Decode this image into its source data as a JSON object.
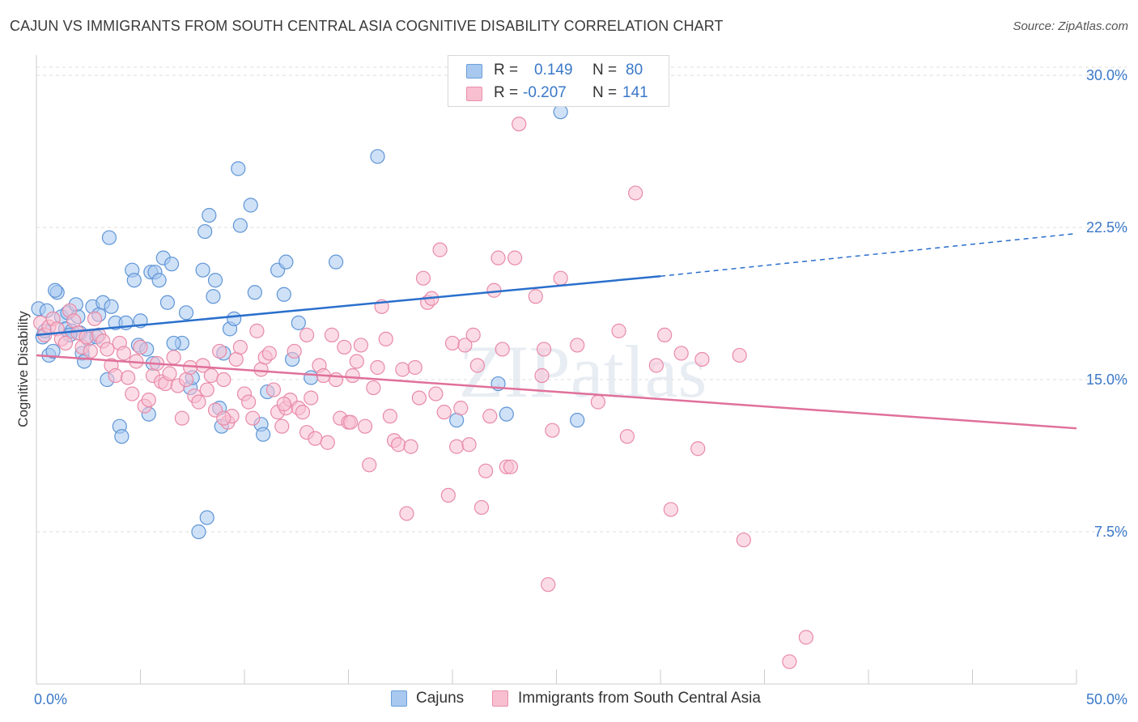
{
  "title": "CAJUN VS IMMIGRANTS FROM SOUTH CENTRAL ASIA COGNITIVE DISABILITY CORRELATION CHART",
  "source": "Source: ZipAtlas.com",
  "watermark": "ZIPatlas",
  "legend": {
    "r_label": "R =",
    "n_label": "N =",
    "rows": [
      {
        "r": "0.149",
        "n": "80",
        "color": "#a8c8f0",
        "border": "#6a9fd8"
      },
      {
        "r": "-0.207",
        "n": "141",
        "color": "#f8bfd0",
        "border": "#e890aa"
      }
    ]
  },
  "bottom_legend": [
    "Cajuns",
    "Immigrants from South Central Asia"
  ],
  "colors": {
    "blue_fill": "#a8c8f0",
    "blue_stroke": "#5f95d6",
    "blue_line": "#2a6fcc",
    "pink_fill": "#f8c0d2",
    "pink_stroke": "#e88aa8",
    "pink_line": "#e0709a",
    "axis_label": "#3a78c8",
    "grid": "#dddddd"
  },
  "chart_data": {
    "type": "scatter",
    "title": "CAJUN VS IMMIGRANTS FROM SOUTH CENTRAL ASIA COGNITIVE DISABILITY CORRELATION CHART",
    "xlabel": "",
    "ylabel": "Cognitive Disability",
    "xlim": [
      0,
      50
    ],
    "ylim": [
      0,
      31
    ],
    "x_tick_labels": [
      "0.0%",
      "50.0%"
    ],
    "y_ticks": [
      7.5,
      15.0,
      22.5,
      30.0
    ],
    "y_tick_labels": [
      "7.5%",
      "15.0%",
      "22.5%",
      "30.0%"
    ],
    "grid": true,
    "series": [
      {
        "name": "Cajuns",
        "r": 0.149,
        "n": 80,
        "trend": {
          "x": [
            0,
            30
          ],
          "y": [
            17.2,
            20.1
          ],
          "dashed_to": [
            50,
            22.2
          ]
        },
        "points": [
          [
            0.1,
            18.5
          ],
          [
            0.3,
            17.1
          ],
          [
            0.4,
            17.4
          ],
          [
            0.5,
            18.4
          ],
          [
            0.6,
            16.2
          ],
          [
            0.8,
            16.4
          ],
          [
            1.0,
            19.3
          ],
          [
            1.2,
            18.1
          ],
          [
            1.4,
            17.5
          ],
          [
            1.5,
            18.3
          ],
          [
            1.7,
            17.4
          ],
          [
            1.9,
            18.7
          ],
          [
            2.0,
            18.1
          ],
          [
            2.1,
            17.3
          ],
          [
            2.2,
            16.3
          ],
          [
            2.3,
            15.9
          ],
          [
            2.5,
            17.0
          ],
          [
            2.7,
            18.6
          ],
          [
            2.9,
            17.1
          ],
          [
            3.0,
            18.2
          ],
          [
            3.2,
            18.8
          ],
          [
            3.5,
            22.0
          ],
          [
            3.6,
            18.6
          ],
          [
            3.8,
            17.8
          ],
          [
            4.0,
            12.7
          ],
          [
            4.1,
            12.2
          ],
          [
            4.3,
            17.8
          ],
          [
            4.6,
            20.4
          ],
          [
            4.7,
            19.9
          ],
          [
            4.9,
            16.7
          ],
          [
            5.0,
            17.9
          ],
          [
            5.3,
            16.5
          ],
          [
            5.4,
            13.3
          ],
          [
            5.5,
            20.3
          ],
          [
            5.6,
            15.8
          ],
          [
            5.7,
            20.3
          ],
          [
            5.9,
            19.9
          ],
          [
            6.1,
            21.0
          ],
          [
            6.3,
            18.8
          ],
          [
            6.5,
            20.7
          ],
          [
            7.0,
            16.8
          ],
          [
            7.2,
            18.3
          ],
          [
            7.4,
            14.6
          ],
          [
            7.5,
            15.1
          ],
          [
            7.8,
            7.5
          ],
          [
            8.0,
            20.4
          ],
          [
            8.1,
            22.3
          ],
          [
            8.2,
            8.2
          ],
          [
            8.3,
            23.1
          ],
          [
            8.5,
            19.1
          ],
          [
            8.6,
            19.9
          ],
          [
            8.8,
            13.6
          ],
          [
            8.9,
            12.7
          ],
          [
            9.3,
            17.5
          ],
          [
            9.5,
            18.0
          ],
          [
            9.7,
            25.4
          ],
          [
            9.8,
            22.6
          ],
          [
            10.3,
            23.6
          ],
          [
            10.5,
            19.3
          ],
          [
            10.8,
            12.8
          ],
          [
            10.9,
            12.3
          ],
          [
            11.1,
            14.4
          ],
          [
            11.6,
            20.4
          ],
          [
            11.9,
            19.2
          ],
          [
            12.0,
            20.8
          ],
          [
            12.3,
            16.0
          ],
          [
            12.6,
            17.8
          ],
          [
            13.2,
            15.1
          ],
          [
            14.4,
            20.8
          ],
          [
            16.4,
            26.0
          ],
          [
            22.2,
            14.8
          ],
          [
            22.6,
            13.3
          ],
          [
            25.2,
            28.2
          ],
          [
            26.0,
            13.0
          ],
          [
            20.2,
            13.0
          ],
          [
            3.4,
            15.0
          ],
          [
            6.6,
            16.8
          ],
          [
            9.0,
            16.3
          ],
          [
            1.6,
            17.2
          ],
          [
            0.9,
            19.4
          ]
        ]
      },
      {
        "name": "Immigrants from South Central Asia",
        "r": -0.207,
        "n": 141,
        "trend": {
          "x": [
            0,
            50
          ],
          "y": [
            16.2,
            12.6
          ]
        },
        "points": [
          [
            0.2,
            17.8
          ],
          [
            0.4,
            17.2
          ],
          [
            0.6,
            17.6
          ],
          [
            0.8,
            18.0
          ],
          [
            1.0,
            17.5
          ],
          [
            1.2,
            17.0
          ],
          [
            1.4,
            16.8
          ],
          [
            1.6,
            18.4
          ],
          [
            1.8,
            17.9
          ],
          [
            2.0,
            17.3
          ],
          [
            2.2,
            16.6
          ],
          [
            2.4,
            17.1
          ],
          [
            2.6,
            16.4
          ],
          [
            2.8,
            18.0
          ],
          [
            3.0,
            17.2
          ],
          [
            3.2,
            16.9
          ],
          [
            3.4,
            16.5
          ],
          [
            3.6,
            15.7
          ],
          [
            3.8,
            15.2
          ],
          [
            4.0,
            16.8
          ],
          [
            4.2,
            16.3
          ],
          [
            4.4,
            15.1
          ],
          [
            4.6,
            14.3
          ],
          [
            4.8,
            15.9
          ],
          [
            5.0,
            16.6
          ],
          [
            5.2,
            13.7
          ],
          [
            5.4,
            14.0
          ],
          [
            5.6,
            15.2
          ],
          [
            5.8,
            15.8
          ],
          [
            6.0,
            14.9
          ],
          [
            6.2,
            14.8
          ],
          [
            6.4,
            15.3
          ],
          [
            6.6,
            16.1
          ],
          [
            6.8,
            14.7
          ],
          [
            7.0,
            13.1
          ],
          [
            7.2,
            15.0
          ],
          [
            7.4,
            15.6
          ],
          [
            7.6,
            14.2
          ],
          [
            7.8,
            13.9
          ],
          [
            8.0,
            15.7
          ],
          [
            8.2,
            14.5
          ],
          [
            8.4,
            15.2
          ],
          [
            8.6,
            13.5
          ],
          [
            8.8,
            16.4
          ],
          [
            9.0,
            15.0
          ],
          [
            9.2,
            12.9
          ],
          [
            9.4,
            13.2
          ],
          [
            9.6,
            16.0
          ],
          [
            9.8,
            16.6
          ],
          [
            10.0,
            14.3
          ],
          [
            10.2,
            13.9
          ],
          [
            10.4,
            13.1
          ],
          [
            10.6,
            17.4
          ],
          [
            10.8,
            15.5
          ],
          [
            11.0,
            16.1
          ],
          [
            11.2,
            16.3
          ],
          [
            11.4,
            14.5
          ],
          [
            11.6,
            13.4
          ],
          [
            11.8,
            12.7
          ],
          [
            12.0,
            13.6
          ],
          [
            12.2,
            14.0
          ],
          [
            12.4,
            16.4
          ],
          [
            12.6,
            13.6
          ],
          [
            12.8,
            13.4
          ],
          [
            13.0,
            12.4
          ],
          [
            13.2,
            14.1
          ],
          [
            13.4,
            12.1
          ],
          [
            13.6,
            15.7
          ],
          [
            13.8,
            15.2
          ],
          [
            14.0,
            11.9
          ],
          [
            14.2,
            17.2
          ],
          [
            14.4,
            15.0
          ],
          [
            14.6,
            13.1
          ],
          [
            14.8,
            16.6
          ],
          [
            15.0,
            12.9
          ],
          [
            15.2,
            15.2
          ],
          [
            15.4,
            15.9
          ],
          [
            15.6,
            16.7
          ],
          [
            15.8,
            12.7
          ],
          [
            16.0,
            10.8
          ],
          [
            16.2,
            14.6
          ],
          [
            16.4,
            15.6
          ],
          [
            16.6,
            18.6
          ],
          [
            16.8,
            17.0
          ],
          [
            17.0,
            13.2
          ],
          [
            17.2,
            12.0
          ],
          [
            17.4,
            11.8
          ],
          [
            17.6,
            15.5
          ],
          [
            17.8,
            8.4
          ],
          [
            18.0,
            11.7
          ],
          [
            18.2,
            15.6
          ],
          [
            18.4,
            14.1
          ],
          [
            18.6,
            20.0
          ],
          [
            18.8,
            18.8
          ],
          [
            19.0,
            19.0
          ],
          [
            19.2,
            14.3
          ],
          [
            19.4,
            21.4
          ],
          [
            19.6,
            13.4
          ],
          [
            19.8,
            9.3
          ],
          [
            20.0,
            16.8
          ],
          [
            20.2,
            11.7
          ],
          [
            20.4,
            13.6
          ],
          [
            20.6,
            16.7
          ],
          [
            20.8,
            11.8
          ],
          [
            21.0,
            17.2
          ],
          [
            21.2,
            15.7
          ],
          [
            21.4,
            8.7
          ],
          [
            21.6,
            10.5
          ],
          [
            21.8,
            13.2
          ],
          [
            22.0,
            19.4
          ],
          [
            22.2,
            21.0
          ],
          [
            22.4,
            16.5
          ],
          [
            22.6,
            10.7
          ],
          [
            22.8,
            10.7
          ],
          [
            23.0,
            21.0
          ],
          [
            24.0,
            19.1
          ],
          [
            24.4,
            16.5
          ],
          [
            24.6,
            4.9
          ],
          [
            24.8,
            12.5
          ],
          [
            25.2,
            20.0
          ],
          [
            26.0,
            16.7
          ],
          [
            27.0,
            13.9
          ],
          [
            28.0,
            17.4
          ],
          [
            28.4,
            12.2
          ],
          [
            28.8,
            24.2
          ],
          [
            29.8,
            15.7
          ],
          [
            30.2,
            17.2
          ],
          [
            30.5,
            8.6
          ],
          [
            31.0,
            16.3
          ],
          [
            31.8,
            11.6
          ],
          [
            32.0,
            16.0
          ],
          [
            33.8,
            16.2
          ],
          [
            34.0,
            7.1
          ],
          [
            36.2,
            1.1
          ],
          [
            37.0,
            2.3
          ],
          [
            24.3,
            15.2
          ],
          [
            23.2,
            27.6
          ],
          [
            15.1,
            12.9
          ],
          [
            13.0,
            17.2
          ],
          [
            9.0,
            13.1
          ],
          [
            11.9,
            13.8
          ]
        ]
      }
    ]
  }
}
